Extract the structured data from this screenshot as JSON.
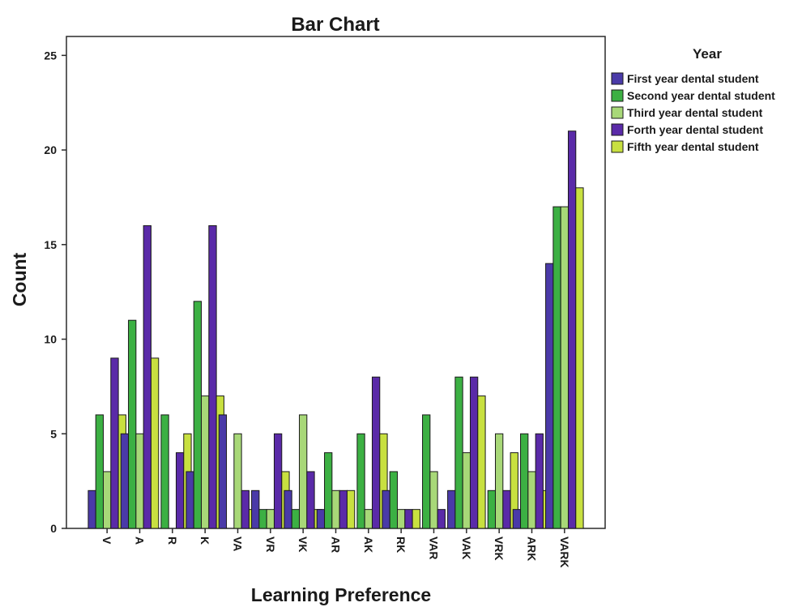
{
  "chart_data": {
    "type": "bar",
    "title": "Bar Chart",
    "xlabel": "Learning Preference",
    "ylabel": "Count",
    "ylim": [
      0,
      26
    ],
    "yticks": [
      0,
      5,
      10,
      15,
      20,
      25
    ],
    "grid": false,
    "legend_position": "right",
    "legend_title": "Year",
    "categories": [
      "V",
      "A",
      "R",
      "K",
      "VA",
      "VR",
      "VK",
      "AR",
      "AK",
      "RK",
      "VAR",
      "VAK",
      "VRK",
      "ARK",
      "VARK"
    ],
    "series": [
      {
        "name": "First year dental student",
        "color": "#4a3aa8",
        "values": [
          2,
          5,
          0,
          3,
          6,
          2,
          2,
          1,
          0,
          2,
          0,
          2,
          0,
          1,
          14
        ]
      },
      {
        "name": "Second year dental student",
        "color": "#3cb043",
        "values": [
          6,
          11,
          6,
          12,
          0,
          1,
          1,
          4,
          5,
          3,
          6,
          8,
          2,
          5,
          17
        ]
      },
      {
        "name": "Third year dental student",
        "color": "#a8d878",
        "values": [
          3,
          5,
          0,
          7,
          5,
          1,
          6,
          2,
          1,
          1,
          3,
          4,
          5,
          3,
          17
        ]
      },
      {
        "name": "Forth year dental student",
        "color": "#5a2aa8",
        "values": [
          9,
          16,
          4,
          16,
          2,
          5,
          3,
          2,
          8,
          1,
          1,
          8,
          2,
          5,
          21
        ]
      },
      {
        "name": "Fifth year dental student",
        "color": "#c8e040",
        "values": [
          6,
          9,
          5,
          7,
          1,
          3,
          1,
          2,
          5,
          1,
          0,
          7,
          4,
          2,
          18
        ]
      }
    ]
  }
}
